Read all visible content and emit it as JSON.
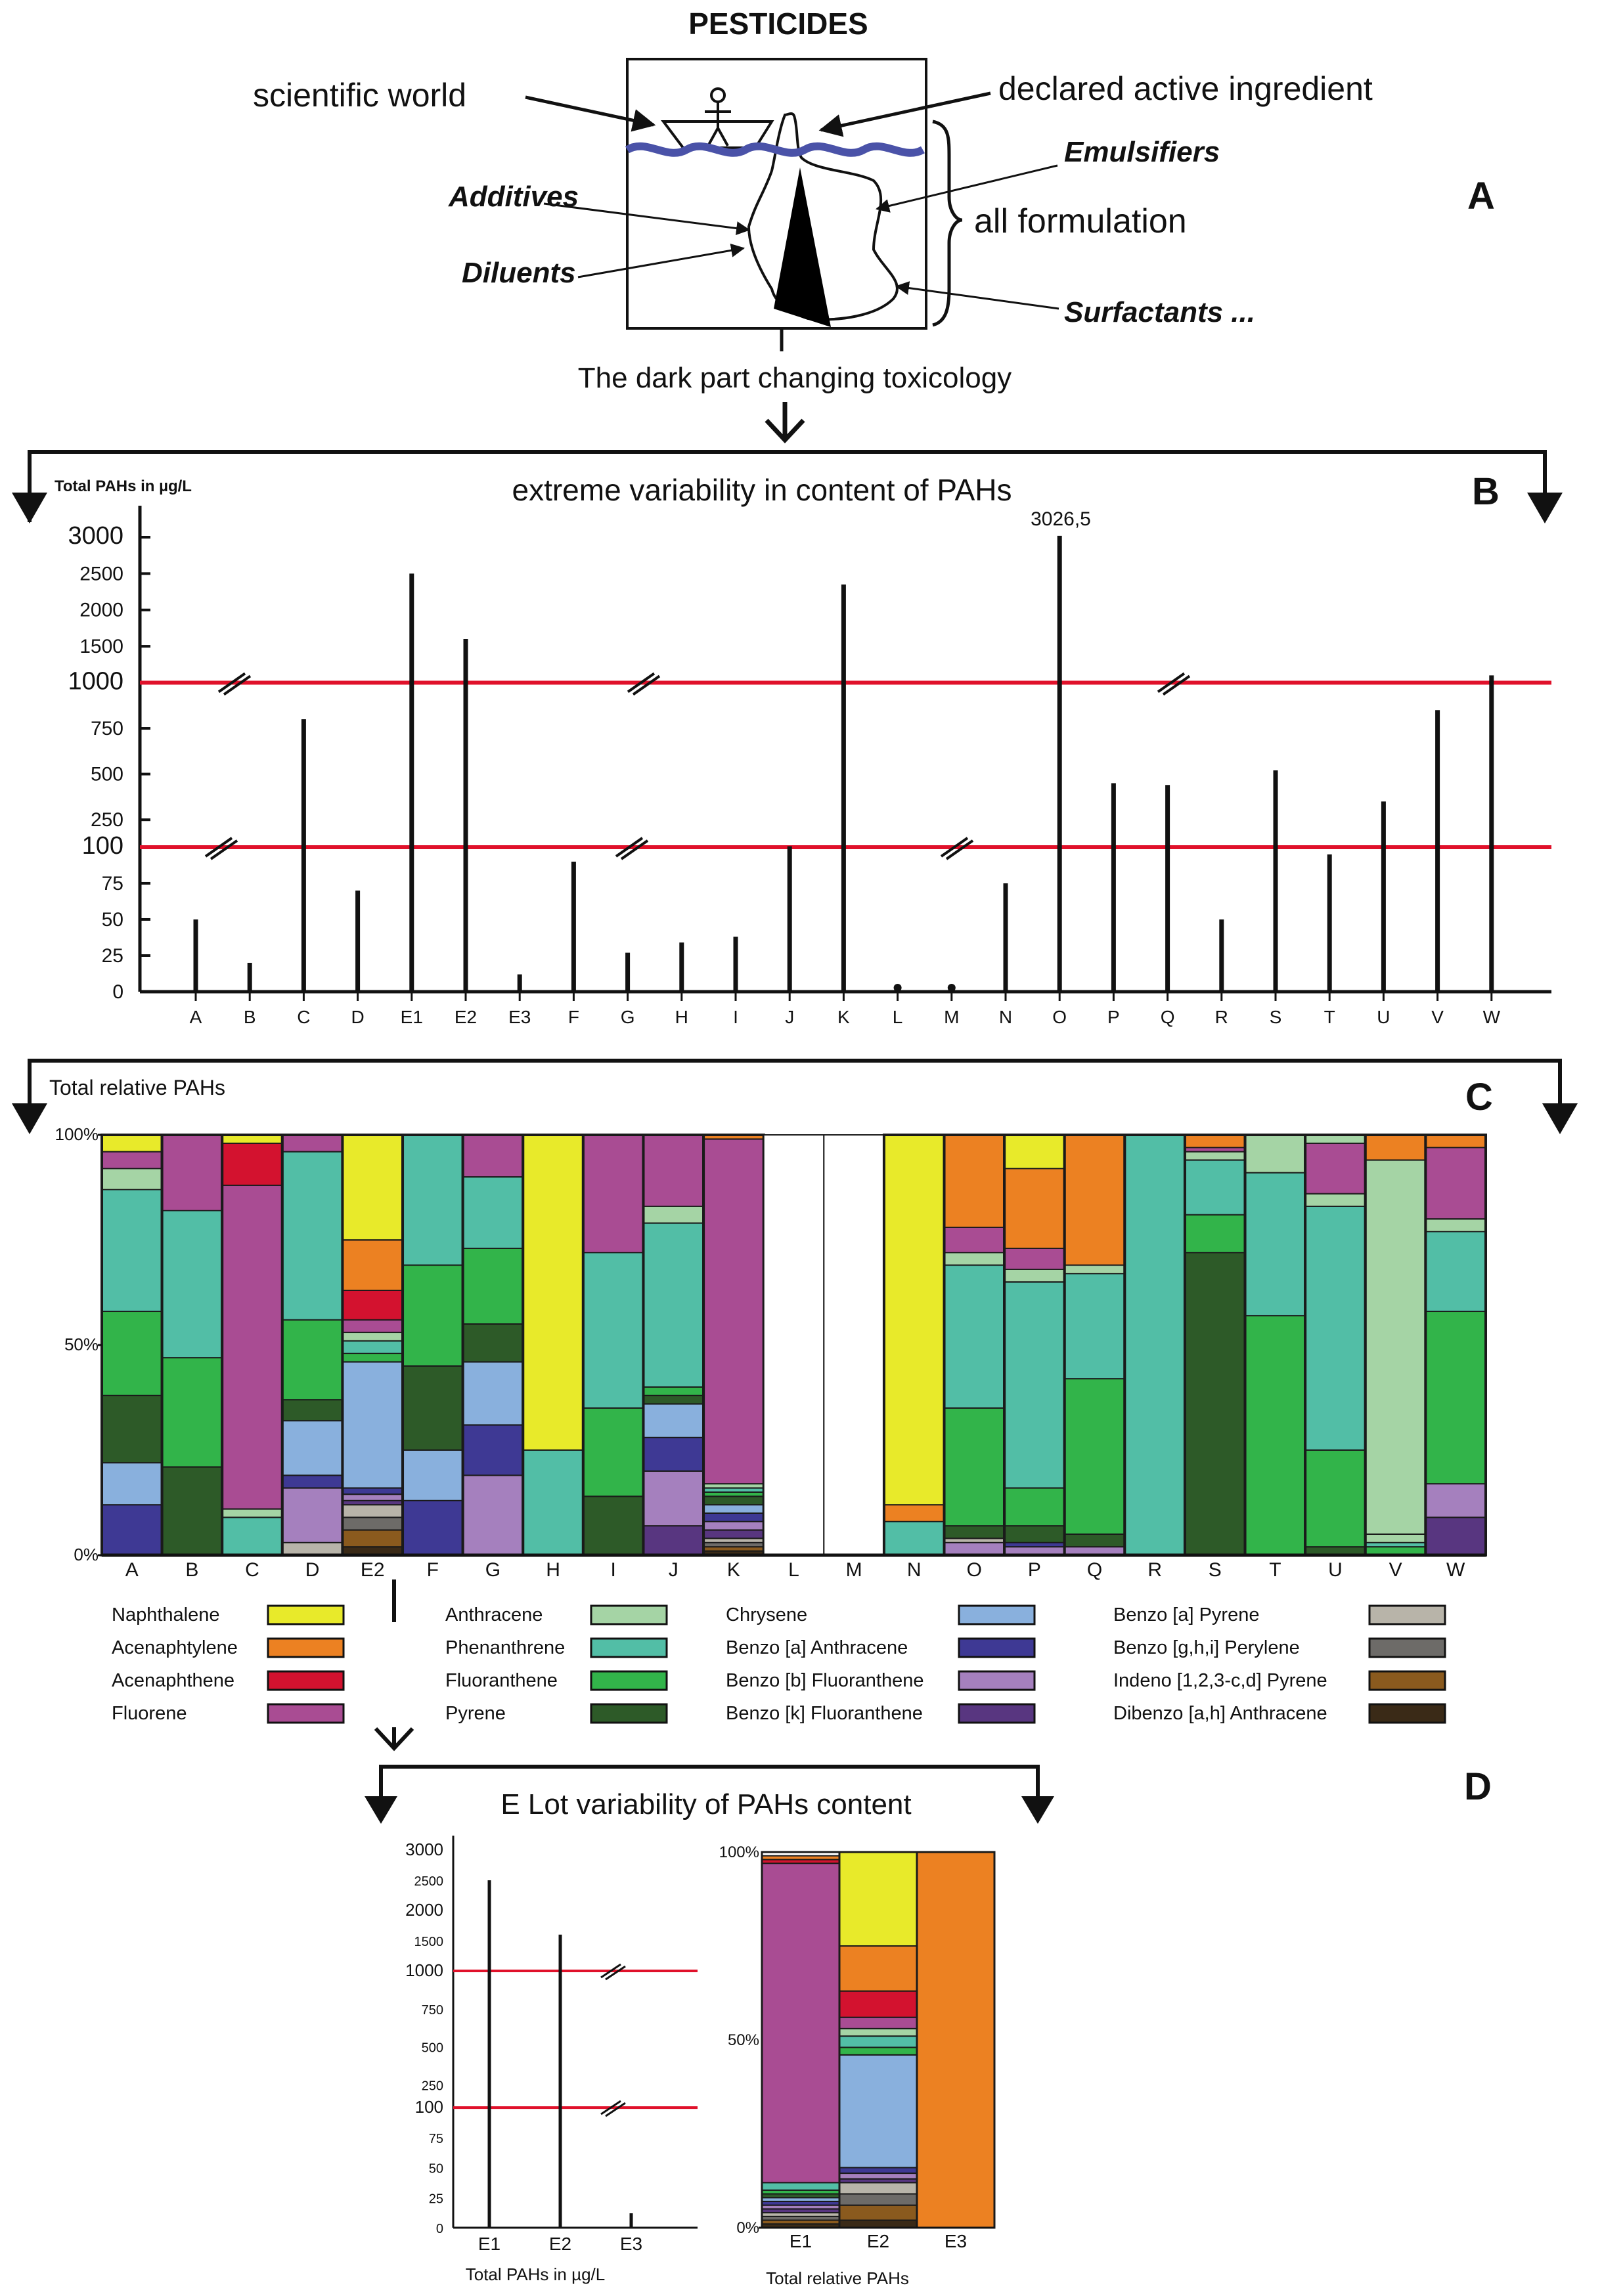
{
  "panel_a": {
    "title": "PESTICIDES",
    "letter": "A",
    "label_scientific": "scientific world",
    "label_declared": "declared active ingredient",
    "label_emulsifiers": "Emulsifiers",
    "label_additives": "Additives",
    "label_all_formulation": "all formulation",
    "label_diluents": "Diluents",
    "label_surfactants": "Surfactants ...",
    "caption": "The dark part changing toxicology"
  },
  "panel_b": {
    "letter": "B",
    "title": "extreme variability in content of PAHs",
    "yaxis_title": "Total PAHs in µg/L",
    "y_ticks": [
      "0",
      "25",
      "50",
      "75",
      "100",
      "250",
      "500",
      "750",
      "1000",
      "1500",
      "2000",
      "2500",
      "3000"
    ],
    "callout": "3026,5"
  },
  "panel_c": {
    "letter": "C",
    "yaxis_title": "Total relative PAHs",
    "y_ticks": [
      "0%",
      "50%",
      "100%"
    ]
  },
  "panel_d": {
    "letter": "D",
    "title": "E Lot variability of  PAHs content",
    "left_xlabel": "Total PAHs in µg/L",
    "right_xlabel": "Total relative PAHs",
    "y_ticks": [
      "0",
      "25",
      "50",
      "75",
      "100",
      "250",
      "500",
      "750",
      "1000",
      "1500",
      "2000",
      "2500",
      "3000"
    ],
    "pct_ticks": [
      "0%",
      "50%",
      "100%"
    ]
  },
  "legend": [
    {
      "name": "Naphthalene",
      "color": "#e8ea2a"
    },
    {
      "name": "Acenaphtylene",
      "color": "#ec8122"
    },
    {
      "name": "Acenaphthene",
      "color": "#d3122f"
    },
    {
      "name": "Fluorene",
      "color": "#a94c93"
    },
    {
      "name": "Anthracene",
      "color": "#a5d4a5"
    },
    {
      "name": "Phenanthrene",
      "color": "#52bea6"
    },
    {
      "name": "Fluoranthene",
      "color": "#32b44a"
    },
    {
      "name": "Pyrene",
      "color": "#2d5a28"
    },
    {
      "name": "Chrysene",
      "color": "#89b0dd"
    },
    {
      "name": "Benzo [a] Anthracene",
      "color": "#3e3994"
    },
    {
      "name": "Benzo [b] Fluoranthene",
      "color": "#a580be"
    },
    {
      "name": "Benzo [k] Fluoranthene",
      "color": "#583680"
    },
    {
      "name": "Benzo [a] Pyrene",
      "color": "#b8b4a9"
    },
    {
      "name": "Benzo [g,h,i] Perylene",
      "color": "#6d6b68"
    },
    {
      "name": "Indeno [1,2,3-c,d] Pyrene",
      "color": "#8a5a1e"
    },
    {
      "name": "Dibenzo [a,h] Anthracene",
      "color": "#3a2a17"
    }
  ],
  "chart_data": [
    {
      "type": "bar",
      "title": "extreme variability in content of PAHs",
      "ylabel": "Total PAHs in µg/L",
      "yscale": "broken (0-100, 100-1000, 1000-3000)",
      "categories": [
        "A",
        "B",
        "C",
        "D",
        "E1",
        "E2",
        "E3",
        "F",
        "G",
        "H",
        "I",
        "J",
        "K",
        "L",
        "M",
        "N",
        "O",
        "P",
        "Q",
        "R",
        "S",
        "T",
        "U",
        "V",
        "W"
      ],
      "values": [
        50,
        20,
        800,
        70,
        2500,
        1600,
        12,
        90,
        27,
        34,
        38,
        105,
        2350,
        0.5,
        0.5,
        75,
        3026.5,
        450,
        440,
        50,
        520,
        95,
        350,
        850,
        1100
      ],
      "annotations": [
        "3026,5"
      ]
    },
    {
      "type": "bar",
      "stacked": true,
      "ylabel": "Total relative PAHs",
      "ylim": [
        0,
        100
      ],
      "categories": [
        "A",
        "B",
        "C",
        "D",
        "E2",
        "F",
        "G",
        "H",
        "I",
        "J",
        "K",
        "L",
        "M",
        "N",
        "O",
        "P",
        "Q",
        "R",
        "S",
        "T",
        "U",
        "V",
        "W"
      ],
      "stacks": {
        "A": [
          [
            "Benzo [a] Anthracene",
            12
          ],
          [
            "Chrysene",
            10
          ],
          [
            "Pyrene",
            16
          ],
          [
            "Fluoranthene",
            20
          ],
          [
            "Phenanthrene",
            29
          ],
          [
            "Anthracene",
            5
          ],
          [
            "Fluorene",
            4
          ],
          [
            "Naphthalene",
            4
          ]
        ],
        "B": [
          [
            "Pyrene",
            21
          ],
          [
            "Fluoranthene",
            26
          ],
          [
            "Phenanthrene",
            35
          ],
          [
            "Fluorene",
            18
          ]
        ],
        "C": [
          [
            "Phenanthrene",
            9
          ],
          [
            "Anthracene",
            2
          ],
          [
            "Fluorene",
            77
          ],
          [
            "Acenaphthene",
            10
          ],
          [
            "Naphthalene",
            2
          ]
        ],
        "D": [
          [
            "Benzo [a] Pyrene",
            3
          ],
          [
            "Benzo [b] Fluoranthene",
            13
          ],
          [
            "Benzo [a] Anthracene",
            3
          ],
          [
            "Chrysene",
            13
          ],
          [
            "Pyrene",
            5
          ],
          [
            "Fluoranthene",
            19
          ],
          [
            "Phenanthrene",
            40
          ],
          [
            "Fluorene",
            4
          ]
        ],
        "E2": [
          [
            "Dibenzo [a,h] Anthracene",
            2
          ],
          [
            "Indeno [1,2,3-c,d] Pyrene",
            4
          ],
          [
            "Benzo [g,h,i] Perylene",
            3
          ],
          [
            "Benzo [a] Pyrene",
            3
          ],
          [
            "Benzo [k] Fluoranthene",
            1
          ],
          [
            "Benzo [b] Fluoranthene",
            1.5
          ],
          [
            "Benzo [a] Anthracene",
            1.5
          ],
          [
            "Chrysene",
            30
          ],
          [
            "Fluoranthene",
            2
          ],
          [
            "Phenanthrene",
            3
          ],
          [
            "Anthracene",
            2
          ],
          [
            "Fluorene",
            3
          ],
          [
            "Acenaphthene",
            7
          ],
          [
            "Acenaphtylene",
            12
          ],
          [
            "Naphthalene",
            25
          ]
        ],
        "F": [
          [
            "Benzo [a] Anthracene",
            13
          ],
          [
            "Chrysene",
            12
          ],
          [
            "Pyrene",
            20
          ],
          [
            "Fluoranthene",
            24
          ],
          [
            "Phenanthrene",
            31
          ]
        ],
        "G": [
          [
            "Benzo [b] Fluoranthene",
            19
          ],
          [
            "Benzo [a] Anthracene",
            12
          ],
          [
            "Chrysene",
            15
          ],
          [
            "Pyrene",
            9
          ],
          [
            "Fluoranthene",
            18
          ],
          [
            "Phenanthrene",
            17
          ],
          [
            "Fluorene",
            10
          ]
        ],
        "H": [
          [
            "Phenanthrene",
            25
          ],
          [
            "Naphthalene",
            75
          ]
        ],
        "I": [
          [
            "Pyrene",
            14
          ],
          [
            "Fluoranthene",
            21
          ],
          [
            "Phenanthrene",
            37
          ],
          [
            "Fluorene",
            28
          ]
        ],
        "J": [
          [
            "Benzo [k] Fluoranthene",
            7
          ],
          [
            "Benzo [b] Fluoranthene",
            13
          ],
          [
            "Benzo [a] Anthracene",
            8
          ],
          [
            "Chrysene",
            8
          ],
          [
            "Pyrene",
            2
          ],
          [
            "Fluoranthene",
            2
          ],
          [
            "Phenanthrene",
            39
          ],
          [
            "Anthracene",
            4
          ],
          [
            "Fluorene",
            17
          ]
        ],
        "K": [
          [
            "Dibenzo [a,h] Anthracene",
            1
          ],
          [
            "Indeno [1,2,3-c,d] Pyrene",
            1
          ],
          [
            "Benzo [g,h,i] Perylene",
            1
          ],
          [
            "Benzo [a] Pyrene",
            1
          ],
          [
            "Benzo [k] Fluoranthene",
            2
          ],
          [
            "Benzo [b] Fluoranthene",
            2
          ],
          [
            "Benzo [a] Anthracene",
            2
          ],
          [
            "Chrysene",
            2
          ],
          [
            "Pyrene",
            2
          ],
          [
            "Fluoranthene",
            1
          ],
          [
            "Phenanthrene",
            1
          ],
          [
            "Anthracene",
            1
          ],
          [
            "Fluorene",
            82
          ],
          [
            "Acenaphtylene",
            1
          ]
        ],
        "L": [],
        "M": [],
        "N": [
          [
            "Phenanthrene",
            8
          ],
          [
            "Acenaphtylene",
            4
          ],
          [
            "Naphthalene",
            88
          ]
        ],
        "O": [
          [
            "Benzo [b] Fluoranthene",
            3
          ],
          [
            "Benzo [a] Pyrene",
            1
          ],
          [
            "Pyrene",
            3
          ],
          [
            "Fluoranthene",
            28
          ],
          [
            "Phenanthrene",
            34
          ],
          [
            "Anthracene",
            3
          ],
          [
            "Fluorene",
            6
          ],
          [
            "Acenaphtylene",
            22
          ]
        ],
        "P": [
          [
            "Benzo [b] Fluoranthene",
            2
          ],
          [
            "Benzo [a] Anthracene",
            1
          ],
          [
            "Pyrene",
            4
          ],
          [
            "Fluoranthene",
            9
          ],
          [
            "Phenanthrene",
            49
          ],
          [
            "Anthracene",
            3
          ],
          [
            "Fluorene",
            5
          ],
          [
            "Acenaphtylene",
            19
          ],
          [
            "Naphthalene",
            8
          ]
        ],
        "Q": [
          [
            "Benzo [b] Fluoranthene",
            2
          ],
          [
            "Pyrene",
            3
          ],
          [
            "Fluoranthene",
            37
          ],
          [
            "Phenanthrene",
            25
          ],
          [
            "Anthracene",
            2
          ],
          [
            "Acenaphtylene",
            31
          ]
        ],
        "R": [
          [
            "Phenanthrene",
            100
          ]
        ],
        "S": [
          [
            "Pyrene",
            72
          ],
          [
            "Fluoranthene",
            9
          ],
          [
            "Phenanthrene",
            13
          ],
          [
            "Anthracene",
            2
          ],
          [
            "Fluorene",
            1
          ],
          [
            "Acenaphtylene",
            3
          ]
        ],
        "T": [
          [
            "Fluoranthene",
            57
          ],
          [
            "Phenanthrene",
            34
          ],
          [
            "Anthracene",
            9
          ]
        ],
        "U": [
          [
            "Pyrene",
            2
          ],
          [
            "Fluoranthene",
            23
          ],
          [
            "Phenanthrene",
            58
          ],
          [
            "Anthracene",
            3
          ],
          [
            "Fluorene",
            12
          ],
          [
            "Anthracene",
            2
          ]
        ],
        "V": [
          [
            "Fluoranthene",
            2
          ],
          [
            "Phenanthrene",
            1
          ],
          [
            "Anthracene",
            2
          ],
          [
            "Anthracene",
            89
          ],
          [
            "Acenaphtylene",
            6
          ]
        ],
        "W": [
          [
            "Benzo [k] Fluoranthene",
            9
          ],
          [
            "Benzo [b] Fluoranthene",
            8
          ],
          [
            "Fluoranthene",
            41
          ],
          [
            "Phenanthrene",
            19
          ],
          [
            "Anthracene",
            3
          ],
          [
            "Fluorene",
            17
          ],
          [
            "Acenaphtylene",
            3
          ]
        ]
      }
    },
    {
      "type": "bar",
      "title": "E Lot variability of  PAHs content",
      "xlabel": "Total PAHs in µg/L",
      "categories": [
        "E1",
        "E2",
        "E3"
      ],
      "values": [
        2500,
        1600,
        12
      ]
    },
    {
      "type": "bar",
      "stacked": true,
      "xlabel": "Total relative PAHs",
      "ylim": [
        0,
        100
      ],
      "categories": [
        "E1",
        "E2",
        "E3"
      ],
      "stacks": {
        "E1": [
          [
            "Dibenzo [a,h] Anthracene",
            1
          ],
          [
            "Indeno [1,2,3-c,d] Pyrene",
            1
          ],
          [
            "Benzo [g,h,i] Perylene",
            1
          ],
          [
            "Benzo [a] Pyrene",
            1
          ],
          [
            "Benzo [k] Fluoranthene",
            1
          ],
          [
            "Benzo [b] Fluoranthene",
            1
          ],
          [
            "Benzo [a] Anthracene",
            1
          ],
          [
            "Chrysene",
            1
          ],
          [
            "Pyrene",
            1
          ],
          [
            "Fluoranthene",
            1
          ],
          [
            "Phenanthrene",
            2
          ],
          [
            "Fluorene",
            85
          ],
          [
            "Acenaphthene",
            1
          ],
          [
            "Acenaphtylene",
            1
          ]
        ],
        "E2": [
          [
            "Dibenzo [a,h] Anthracene",
            2
          ],
          [
            "Indeno [1,2,3-c,d] Pyrene",
            4
          ],
          [
            "Benzo [g,h,i] Perylene",
            3
          ],
          [
            "Benzo [a] Pyrene",
            3
          ],
          [
            "Benzo [k] Fluoranthene",
            1
          ],
          [
            "Benzo [b] Fluoranthene",
            1.5
          ],
          [
            "Benzo [a] Anthracene",
            1.5
          ],
          [
            "Chrysene",
            30
          ],
          [
            "Fluoranthene",
            2
          ],
          [
            "Phenanthrene",
            3
          ],
          [
            "Anthracene",
            2
          ],
          [
            "Fluorene",
            3
          ],
          [
            "Acenaphthene",
            7
          ],
          [
            "Acenaphtylene",
            12
          ],
          [
            "Naphthalene",
            25
          ]
        ],
        "E3": [
          [
            "Acenaphtylene",
            100
          ]
        ]
      }
    }
  ]
}
